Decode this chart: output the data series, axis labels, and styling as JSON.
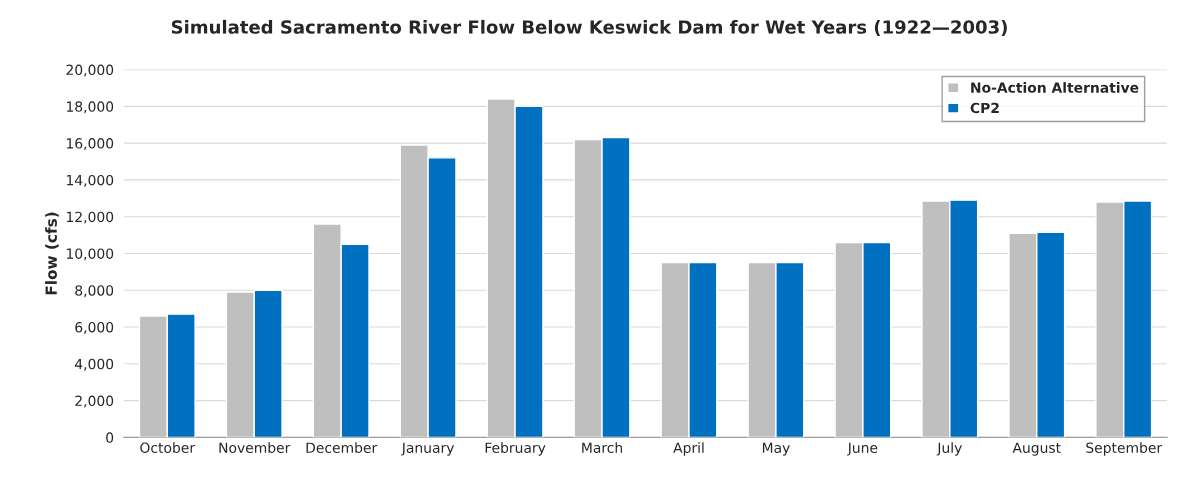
{
  "chart_data": {
    "type": "bar",
    "title": "Simulated Sacramento River Flow Below Keswick Dam for Wet Years (1922—2003)",
    "ylabel": "Flow (cfs)",
    "categories": [
      "October",
      "November",
      "December",
      "January",
      "February",
      "March",
      "April",
      "May",
      "June",
      "July",
      "August",
      "September"
    ],
    "series": [
      {
        "name": "No-Action Alternative",
        "color": "#bfbfbf",
        "values": [
          6600,
          7900,
          11600,
          15900,
          18400,
          16200,
          9500,
          9500,
          10600,
          12850,
          11100,
          12800
        ]
      },
      {
        "name": "CP2",
        "color": "#0070c0",
        "values": [
          6700,
          8000,
          10500,
          15200,
          18000,
          16300,
          9500,
          9500,
          10600,
          12900,
          11150,
          12850
        ]
      }
    ],
    "ylim": [
      0,
      20000
    ],
    "yticks": [
      {
        "value": 0,
        "label": "0"
      },
      {
        "value": 2000,
        "label": "2,000"
      },
      {
        "value": 4000,
        "label": "4,000"
      },
      {
        "value": 6000,
        "label": "6,000"
      },
      {
        "value": 8000,
        "label": "8,000"
      },
      {
        "value": 10000,
        "label": "10,000"
      },
      {
        "value": 12000,
        "label": "12,000"
      },
      {
        "value": 14000,
        "label": "14,000"
      },
      {
        "value": 16000,
        "label": "16,000"
      },
      {
        "value": 18000,
        "label": "18,000"
      },
      {
        "value": 20000,
        "label": "20,000"
      }
    ],
    "grid": "y",
    "legend": "top right"
  }
}
